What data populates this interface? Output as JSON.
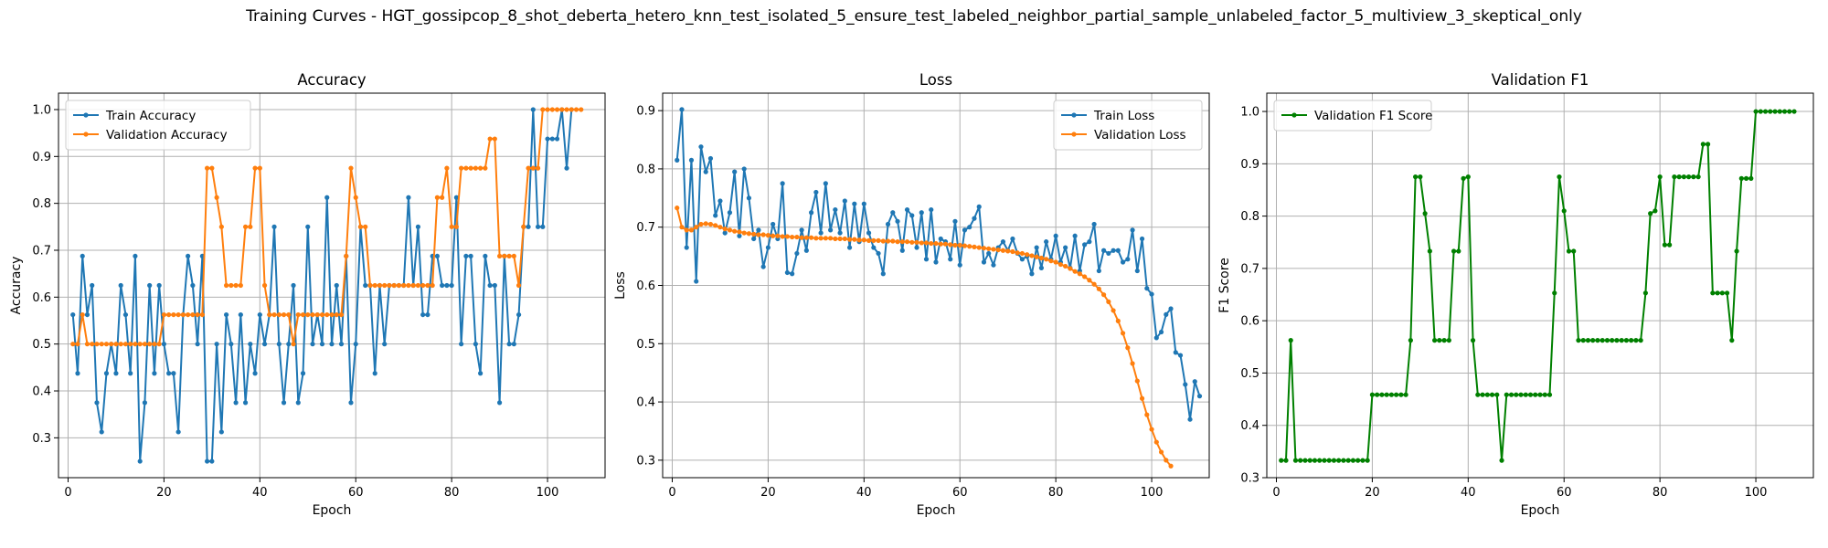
{
  "figure": {
    "title": "Training Curves - HGT_gossipcop_8_shot_deberta_hetero_knn_test_isolated_5_ensure_test_labeled_neighbor_partial_sample_unlabeled_factor_5_multiview_3_skeptical_only"
  },
  "colors": {
    "blue": "#1f77b4",
    "orange": "#ff7f0e",
    "green": "#008000"
  },
  "chart_data": [
    {
      "type": "line",
      "title": "Accuracy",
      "xlabel": "Epoch",
      "ylabel": "Accuracy",
      "xlim": [
        -2,
        112
      ],
      "ylim": [
        0.215,
        1.035
      ],
      "xticks": [
        0,
        20,
        40,
        60,
        80,
        100
      ],
      "yticks": [
        0.3,
        0.4,
        0.5,
        0.6,
        0.7,
        0.8,
        0.9,
        1.0
      ],
      "ytick_labels": [
        "0.3",
        "0.4",
        "0.5",
        "0.6",
        "0.7",
        "0.8",
        "0.9",
        "1.0"
      ],
      "grid": true,
      "legend": "upper-left",
      "series": [
        {
          "name": "Train Accuracy",
          "color": "#1f77b4",
          "x_start": 1,
          "values": [
            0.5625,
            0.4375,
            0.6875,
            0.5625,
            0.625,
            0.375,
            0.3125,
            0.4375,
            0.5,
            0.4375,
            0.625,
            0.5625,
            0.4375,
            0.6875,
            0.25,
            0.375,
            0.625,
            0.4375,
            0.625,
            0.5,
            0.4375,
            0.4375,
            0.3125,
            0.5625,
            0.6875,
            0.625,
            0.5,
            0.6875,
            0.25,
            0.25,
            0.5,
            0.3125,
            0.5625,
            0.5,
            0.375,
            0.5625,
            0.375,
            0.5,
            0.4375,
            0.5625,
            0.5,
            0.5625,
            0.75,
            0.5,
            0.375,
            0.5,
            0.625,
            0.375,
            0.4375,
            0.75,
            0.5,
            0.5625,
            0.5,
            0.8125,
            0.5,
            0.625,
            0.5,
            0.6875,
            0.375,
            0.5,
            0.75,
            0.625,
            0.625,
            0.4375,
            0.625,
            0.5,
            0.625,
            0.625,
            0.625,
            0.625,
            0.8125,
            0.625,
            0.75,
            0.5625,
            0.5625,
            0.6875,
            0.6875,
            0.625,
            0.625,
            0.625,
            0.8125,
            0.5,
            0.6875,
            0.6875,
            0.5,
            0.4375,
            0.6875,
            0.625,
            0.625,
            0.375,
            0.6875,
            0.5,
            0.5,
            0.5625,
            0.75,
            0.75,
            1.0,
            0.75,
            0.75,
            0.9375,
            0.9375,
            0.9375,
            1.0,
            0.875,
            1.0
          ]
        },
        {
          "name": "Validation Accuracy",
          "color": "#ff7f0e",
          "x_start": 1,
          "values": [
            0.5,
            0.5,
            0.5625,
            0.5,
            0.5,
            0.5,
            0.5,
            0.5,
            0.5,
            0.5,
            0.5,
            0.5,
            0.5,
            0.5,
            0.5,
            0.5,
            0.5,
            0.5,
            0.5,
            0.5625,
            0.5625,
            0.5625,
            0.5625,
            0.5625,
            0.5625,
            0.5625,
            0.5625,
            0.5625,
            0.875,
            0.875,
            0.8125,
            0.75,
            0.625,
            0.625,
            0.625,
            0.625,
            0.75,
            0.75,
            0.875,
            0.875,
            0.625,
            0.5625,
            0.5625,
            0.5625,
            0.5625,
            0.5625,
            0.5,
            0.5625,
            0.5625,
            0.5625,
            0.5625,
            0.5625,
            0.5625,
            0.5625,
            0.5625,
            0.5625,
            0.5625,
            0.6875,
            0.875,
            0.8125,
            0.75,
            0.75,
            0.625,
            0.625,
            0.625,
            0.625,
            0.625,
            0.625,
            0.625,
            0.625,
            0.625,
            0.625,
            0.625,
            0.625,
            0.625,
            0.625,
            0.8125,
            0.8125,
            0.875,
            0.75,
            0.75,
            0.875,
            0.875,
            0.875,
            0.875,
            0.875,
            0.875,
            0.9375,
            0.9375,
            0.6875,
            0.6875,
            0.6875,
            0.6875,
            0.625,
            0.75,
            0.875,
            0.875,
            0.875,
            1.0,
            1.0,
            1.0,
            1.0,
            1.0,
            1.0,
            1.0,
            1.0,
            1.0
          ]
        }
      ]
    },
    {
      "type": "line",
      "title": "Loss",
      "xlabel": "Epoch",
      "ylabel": "Loss",
      "xlim": [
        -2,
        112
      ],
      "ylim": [
        0.27,
        0.93
      ],
      "xticks": [
        0,
        20,
        40,
        60,
        80,
        100
      ],
      "yticks": [
        0.3,
        0.4,
        0.5,
        0.6,
        0.7,
        0.8,
        0.9
      ],
      "ytick_labels": [
        "0.3",
        "0.4",
        "0.5",
        "0.6",
        "0.7",
        "0.8",
        "0.9"
      ],
      "grid": true,
      "legend": "upper-right",
      "series": [
        {
          "name": "Train Loss",
          "color": "#1f77b4",
          "x_start": 1,
          "values": [
            0.815,
            0.902,
            0.665,
            0.815,
            0.607,
            0.838,
            0.795,
            0.818,
            0.72,
            0.745,
            0.69,
            0.725,
            0.795,
            0.685,
            0.8,
            0.75,
            0.68,
            0.695,
            0.632,
            0.665,
            0.705,
            0.68,
            0.775,
            0.622,
            0.62,
            0.655,
            0.695,
            0.66,
            0.725,
            0.76,
            0.69,
            0.775,
            0.695,
            0.73,
            0.69,
            0.745,
            0.665,
            0.74,
            0.675,
            0.74,
            0.69,
            0.665,
            0.655,
            0.62,
            0.705,
            0.725,
            0.71,
            0.66,
            0.73,
            0.72,
            0.665,
            0.725,
            0.645,
            0.73,
            0.64,
            0.68,
            0.675,
            0.645,
            0.71,
            0.635,
            0.695,
            0.7,
            0.715,
            0.735,
            0.64,
            0.655,
            0.635,
            0.665,
            0.675,
            0.66,
            0.68,
            0.655,
            0.645,
            0.65,
            0.62,
            0.665,
            0.63,
            0.675,
            0.645,
            0.685,
            0.64,
            0.665,
            0.63,
            0.685,
            0.625,
            0.67,
            0.675,
            0.705,
            0.625,
            0.66,
            0.655,
            0.66,
            0.66,
            0.64,
            0.645,
            0.695,
            0.625,
            0.68,
            0.595,
            0.585,
            0.51,
            0.52,
            0.55,
            0.56,
            0.485,
            0.48,
            0.43,
            0.37,
            0.435,
            0.41
          ]
        },
        {
          "name": "Validation Loss",
          "color": "#ff7f0e",
          "x_start": 1,
          "values": [
            0.733,
            0.7,
            0.695,
            0.695,
            0.7,
            0.705,
            0.706,
            0.705,
            0.703,
            0.7,
            0.697,
            0.695,
            0.693,
            0.692,
            0.69,
            0.689,
            0.688,
            0.687,
            0.687,
            0.686,
            0.685,
            0.685,
            0.684,
            0.684,
            0.683,
            0.683,
            0.682,
            0.682,
            0.682,
            0.681,
            0.681,
            0.681,
            0.681,
            0.68,
            0.68,
            0.68,
            0.679,
            0.679,
            0.678,
            0.678,
            0.677,
            0.677,
            0.677,
            0.676,
            0.676,
            0.676,
            0.675,
            0.675,
            0.675,
            0.674,
            0.674,
            0.673,
            0.673,
            0.672,
            0.672,
            0.671,
            0.671,
            0.67,
            0.669,
            0.669,
            0.668,
            0.667,
            0.666,
            0.665,
            0.664,
            0.663,
            0.662,
            0.661,
            0.66,
            0.659,
            0.658,
            0.656,
            0.655,
            0.653,
            0.651,
            0.649,
            0.647,
            0.645,
            0.642,
            0.64,
            0.636,
            0.633,
            0.629,
            0.624,
            0.62,
            0.615,
            0.609,
            0.602,
            0.594,
            0.584,
            0.572,
            0.557,
            0.539,
            0.518,
            0.493,
            0.466,
            0.436,
            0.406,
            0.378,
            0.353,
            0.331,
            0.314,
            0.3,
            0.29
          ]
        }
      ]
    },
    {
      "type": "line",
      "title": "Validation F1",
      "xlabel": "Epoch",
      "ylabel": "F1 Score",
      "xlim": [
        -2,
        112
      ],
      "ylim": [
        0.3,
        1.035
      ],
      "xticks": [
        0,
        20,
        40,
        60,
        80,
        100
      ],
      "yticks": [
        0.3,
        0.4,
        0.5,
        0.6,
        0.7,
        0.8,
        0.9,
        1.0
      ],
      "ytick_labels": [
        "0.3",
        "0.4",
        "0.5",
        "0.6",
        "0.7",
        "0.8",
        "0.9",
        "1.0"
      ],
      "grid": true,
      "legend": "upper-left",
      "series": [
        {
          "name": "Validation F1 Score",
          "color": "#008000",
          "x_start": 1,
          "values": [
            0.333,
            0.333,
            0.5625,
            0.333,
            0.333,
            0.333,
            0.333,
            0.333,
            0.333,
            0.333,
            0.333,
            0.333,
            0.333,
            0.333,
            0.333,
            0.333,
            0.333,
            0.333,
            0.333,
            0.4585,
            0.4585,
            0.4585,
            0.4585,
            0.4585,
            0.4585,
            0.4585,
            0.4585,
            0.5625,
            0.875,
            0.875,
            0.805,
            0.733,
            0.5625,
            0.5625,
            0.5625,
            0.5625,
            0.733,
            0.733,
            0.872,
            0.875,
            0.5625,
            0.4585,
            0.4585,
            0.4585,
            0.4585,
            0.4585,
            0.333,
            0.4585,
            0.4585,
            0.4585,
            0.4585,
            0.4585,
            0.4585,
            0.4585,
            0.4585,
            0.4585,
            0.4585,
            0.653,
            0.875,
            0.81,
            0.733,
            0.733,
            0.5625,
            0.5625,
            0.5625,
            0.5625,
            0.5625,
            0.5625,
            0.5625,
            0.5625,
            0.5625,
            0.5625,
            0.5625,
            0.5625,
            0.5625,
            0.5625,
            0.653,
            0.805,
            0.81,
            0.875,
            0.745,
            0.745,
            0.875,
            0.875,
            0.875,
            0.875,
            0.875,
            0.875,
            0.9375,
            0.9375,
            0.653,
            0.653,
            0.653,
            0.653,
            0.5625,
            0.733,
            0.872,
            0.872,
            0.872,
            1.0,
            1.0,
            1.0,
            1.0,
            1.0,
            1.0,
            1.0,
            1.0,
            1.0
          ]
        }
      ]
    }
  ]
}
